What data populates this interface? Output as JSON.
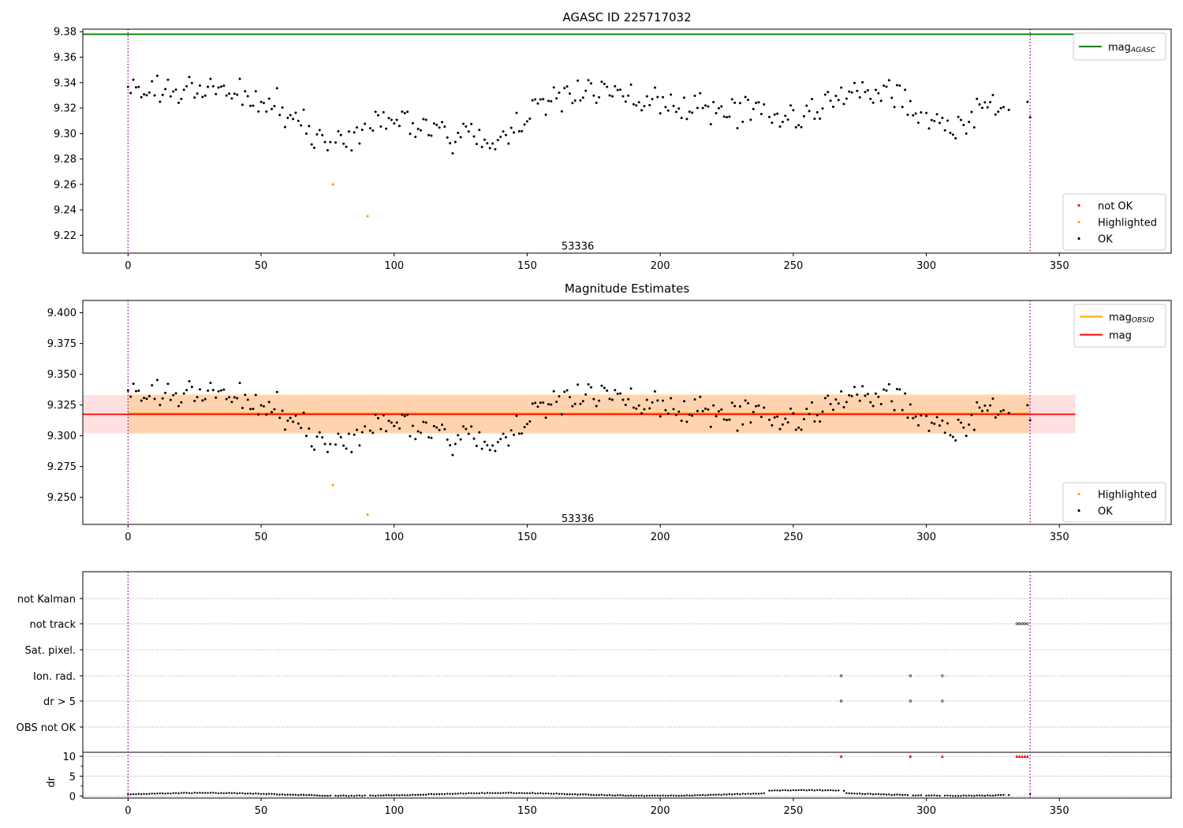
{
  "chart_data": [
    {
      "type": "scatter",
      "title": "AGASC ID 225717032",
      "xlim": [
        -17,
        392
      ],
      "ylim": [
        9.206,
        9.382
      ],
      "xticks": [
        "0",
        "50",
        "100",
        "150",
        "200",
        "250",
        "300",
        "350"
      ],
      "yticks": [
        "9.22",
        "9.24",
        "9.26",
        "9.28",
        "9.30",
        "9.32",
        "9.34",
        "9.36",
        "9.38"
      ],
      "xtick_values": [
        0,
        50,
        100,
        150,
        200,
        250,
        300,
        350
      ],
      "ytick_values": [
        9.22,
        9.24,
        9.26,
        9.28,
        9.3,
        9.32,
        9.34,
        9.36,
        9.38
      ],
      "annotation": {
        "text": "53336",
        "x": 169,
        "y": 9.212
      },
      "vlines": [
        0,
        339
      ],
      "mag_agasc": {
        "value": 9.378,
        "x_range": [
          -17,
          356
        ]
      },
      "legends": [
        {
          "placement": "top-right",
          "entries": [
            {
              "label": "mag",
              "sub": "AGASC",
              "color": "#008000",
              "kind": "line"
            }
          ]
        },
        {
          "placement": "bottom-right",
          "entries": [
            {
              "label": "not OK",
              "color": "#ff0000",
              "kind": "dot"
            },
            {
              "label": "Highlighted",
              "color": "#ffa500",
              "kind": "dot"
            },
            {
              "label": "OK",
              "color": "#000000",
              "kind": "dot"
            }
          ]
        }
      ],
      "highlighted": [
        {
          "x": 77,
          "y": 9.26
        },
        {
          "x": 90,
          "y": 9.235
        }
      ]
    },
    {
      "type": "scatter",
      "title": "Magnitude Estimates",
      "xlim": [
        -17,
        392
      ],
      "ylim": [
        9.228,
        9.41
      ],
      "xticks": [
        "0",
        "50",
        "100",
        "150",
        "200",
        "250",
        "300",
        "350"
      ],
      "yticks": [
        "9.250",
        "9.275",
        "9.300",
        "9.325",
        "9.350",
        "9.375",
        "9.400"
      ],
      "xtick_values": [
        0,
        50,
        100,
        150,
        200,
        250,
        300,
        350
      ],
      "ytick_values": [
        9.25,
        9.275,
        9.3,
        9.325,
        9.35,
        9.375,
        9.4
      ],
      "annotation": {
        "text": "53336",
        "x": 169,
        "y": 9.233
      },
      "vlines": [
        0,
        339
      ],
      "mag": {
        "value": 9.3175,
        "band": [
          9.302,
          9.333
        ],
        "x_range": [
          -17,
          356
        ]
      },
      "mag_obsid": {
        "value": 9.318,
        "band": [
          9.302,
          9.334
        ],
        "x_range": [
          0,
          339
        ]
      },
      "legends": [
        {
          "placement": "top-right",
          "entries": [
            {
              "label": "mag",
              "sub": "OBSID",
              "color": "#ffa500",
              "kind": "line"
            },
            {
              "label": "mag",
              "sub": "",
              "color": "#ff0000",
              "kind": "line"
            }
          ]
        },
        {
          "placement": "bottom-right",
          "entries": [
            {
              "label": "Highlighted",
              "color": "#ffa500",
              "kind": "dot"
            },
            {
              "label": "OK",
              "color": "#000000",
              "kind": "dot"
            }
          ]
        }
      ],
      "highlighted": [
        {
          "x": 77,
          "y": 9.26
        },
        {
          "x": 90,
          "y": 9.236
        }
      ]
    },
    {
      "type": "scatter",
      "title": "",
      "xlim": [
        -17,
        392
      ],
      "xticks": [
        "0",
        "50",
        "100",
        "150",
        "200",
        "250",
        "300",
        "350"
      ],
      "xtick_values": [
        0,
        50,
        100,
        150,
        200,
        250,
        300,
        350
      ],
      "flag_rows": [
        "not Kalman",
        "not track",
        "Sat. pixel.",
        "Ion. rad.",
        "dr > 5",
        "OBS not OK"
      ],
      "flags": {
        "not Kalman": [],
        "not track": [
          334,
          335,
          336,
          337,
          338
        ],
        "Sat. pixel.": [],
        "Ion. rad.": [
          268,
          294,
          306
        ],
        "dr > 5": [
          268,
          294,
          306
        ],
        "OBS not OK": []
      },
      "dr_axis": {
        "ylabel": "dr",
        "ylim": [
          -0.5,
          11
        ],
        "yticks": [
          "0",
          "5",
          "10"
        ],
        "ytick_values": [
          0,
          5,
          10
        ]
      },
      "dr_capped": [
        268,
        294,
        306,
        334,
        335,
        336,
        337,
        338
      ],
      "vlines": [
        0,
        339
      ]
    }
  ]
}
